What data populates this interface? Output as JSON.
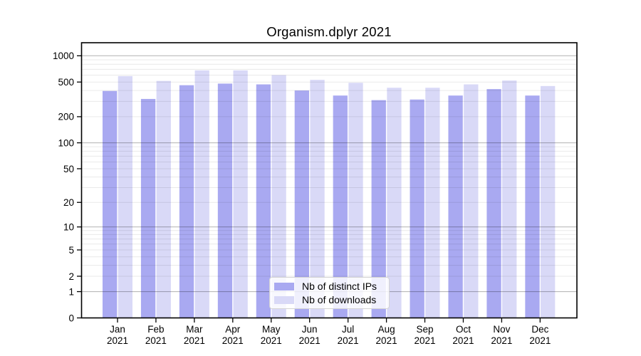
{
  "chart_data": {
    "type": "bar",
    "title": "Organism.dplyr 2021",
    "categories": [
      "Jan",
      "Feb",
      "Mar",
      "Apr",
      "May",
      "Jun",
      "Jul",
      "Aug",
      "Sep",
      "Oct",
      "Nov",
      "Dec"
    ],
    "year_label": "2021",
    "series": [
      {
        "name": "Nb of distinct IPs",
        "color": "#a9a9f1",
        "values": [
          395,
          320,
          460,
          480,
          470,
          400,
          350,
          310,
          315,
          350,
          415,
          350
        ]
      },
      {
        "name": "Nb of downloads",
        "color": "#d9d9f7",
        "values": [
          585,
          515,
          680,
          680,
          600,
          530,
          490,
          430,
          430,
          470,
          520,
          450
        ]
      }
    ],
    "yscale": "log10(1+x)",
    "y_ticks": [
      0,
      1,
      2,
      5,
      10,
      20,
      50,
      100,
      200,
      500,
      1000
    ],
    "ylim": [
      0,
      1400
    ],
    "grid": true,
    "legend_position": "bottom-center",
    "xlabel": "",
    "ylabel": ""
  },
  "legend": {
    "items": [
      {
        "label": "Nb of distinct IPs",
        "color": "#a9a9f1"
      },
      {
        "label": "Nb of downloads",
        "color": "#d9d9f7"
      }
    ]
  },
  "colors": {
    "background": "#ffffff",
    "frame": "#000000",
    "major_grid": "#b8b8b8",
    "minor_grid": "#e8e8e8",
    "bar_dark": "#a9a9f1",
    "bar_light": "#d9d9f7"
  }
}
